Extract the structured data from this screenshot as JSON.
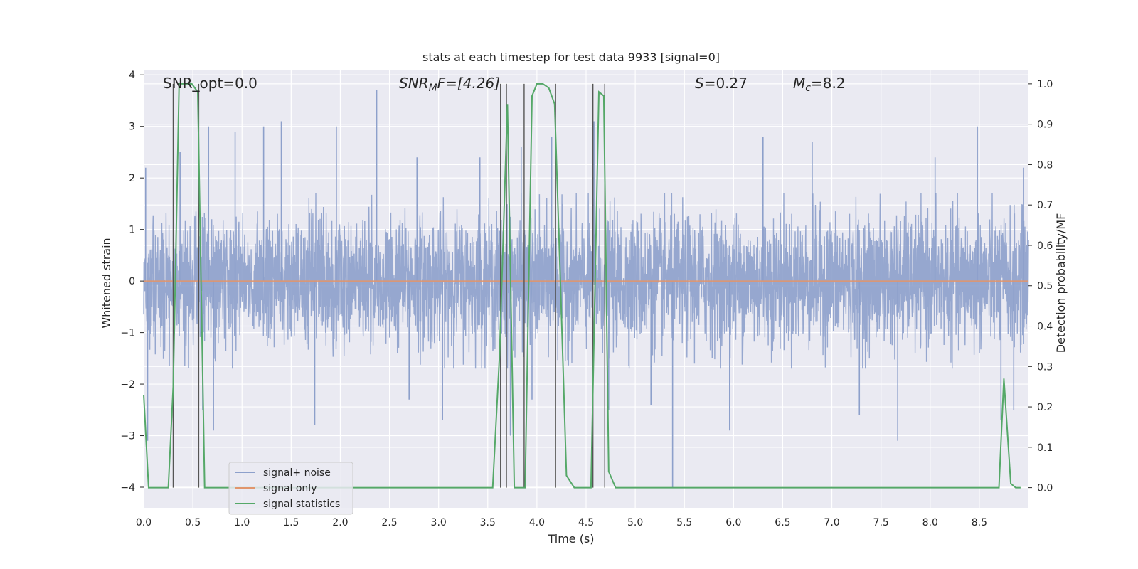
{
  "chart_data": {
    "type": "line",
    "title": "stats at each timestep for test data 9933 [signal=0]",
    "xlabel": "Time (s)",
    "ylabel": "Whitened strain",
    "y2label": "Detection probability/MF",
    "xlim": [
      0.0,
      9.0
    ],
    "ylim": [
      -4.4,
      4.1
    ],
    "y2lim": [
      -0.05,
      1.035
    ],
    "xticks": [
      "0.0",
      "0.5",
      "1.0",
      "1.5",
      "2.0",
      "2.5",
      "3.0",
      "3.5",
      "4.0",
      "4.5",
      "5.0",
      "5.5",
      "6.0",
      "6.5",
      "7.0",
      "7.5",
      "8.0",
      "8.5"
    ],
    "yticks": [
      "4",
      "3",
      "2",
      "1",
      "0",
      "−1",
      "−2",
      "−3",
      "−4"
    ],
    "y2ticks": [
      "1.0",
      "0.9",
      "0.8",
      "0.7",
      "0.6",
      "0.5",
      "0.4",
      "0.3",
      "0.2",
      "0.1",
      "0.0"
    ],
    "annotations": {
      "snr_opt": "SNR_opt=0.0",
      "snr_mf_sym": "SNR",
      "snr_mf_sub": "M",
      "snr_mf_rest": "F=[4.26]",
      "s_sym": "S",
      "s_rest": "=0.27",
      "mc_sym": "M",
      "mc_sub": "c",
      "mc_rest": "=8.2"
    },
    "legend": {
      "placement": "lower-left",
      "entries": [
        "signal+ noise",
        "signal only",
        "signal statistics"
      ]
    },
    "colors": {
      "noise": "#8da0cb",
      "signal": "#e1956c",
      "stat": "#55a868",
      "vline": "#555555",
      "bg": "#eaeaf2",
      "grid": "#ffffff"
    },
    "series": [
      {
        "name": "signal+ noise",
        "note_envelope": [
          -1.7,
          1.7
        ],
        "duration": 9.0,
        "spikes": [
          [
            0.02,
            2.2
          ],
          [
            0.04,
            -3.1
          ],
          [
            0.37,
            2.5
          ],
          [
            0.6,
            -2.5
          ],
          [
            0.66,
            3.0
          ],
          [
            0.71,
            -2.9
          ],
          [
            0.93,
            2.9
          ],
          [
            1.22,
            3.0
          ],
          [
            1.4,
            3.1
          ],
          [
            1.74,
            -2.8
          ],
          [
            1.96,
            3.0
          ],
          [
            2.37,
            3.7
          ],
          [
            2.7,
            -2.3
          ],
          [
            2.78,
            2.4
          ],
          [
            3.04,
            -2.7
          ],
          [
            3.42,
            2.4
          ],
          [
            3.63,
            -2.3
          ],
          [
            3.73,
            -3.0
          ],
          [
            3.84,
            2.6
          ],
          [
            3.95,
            -2.3
          ],
          [
            4.15,
            2.8
          ],
          [
            4.58,
            3.1
          ],
          [
            4.73,
            -2.5
          ],
          [
            5.16,
            -2.4
          ],
          [
            5.38,
            -4.0
          ],
          [
            5.96,
            -2.9
          ],
          [
            6.3,
            2.8
          ],
          [
            6.8,
            2.7
          ],
          [
            7.28,
            -2.6
          ],
          [
            7.67,
            -3.1
          ],
          [
            8.05,
            2.4
          ],
          [
            8.48,
            3.0
          ],
          [
            8.72,
            -2.7
          ],
          [
            8.85,
            -2.5
          ],
          [
            8.95,
            2.2
          ]
        ]
      },
      {
        "name": "signal only",
        "x": [
          0.0,
          9.0
        ],
        "y": [
          0.0,
          0.0
        ]
      },
      {
        "name": "signal statistics",
        "x": [
          0.0,
          0.05,
          0.1,
          0.25,
          0.3,
          0.36,
          0.49,
          0.55,
          0.62,
          0.7,
          3.55,
          3.62,
          3.7,
          3.77,
          3.83,
          3.88,
          3.95,
          4.0,
          4.06,
          4.12,
          4.18,
          4.24,
          4.3,
          4.38,
          4.45,
          4.55,
          4.63,
          4.68,
          4.73,
          4.8,
          5.0,
          8.7,
          8.75,
          8.82,
          8.87,
          8.92
        ],
        "y": [
          0.23,
          0.0,
          0.0,
          0.0,
          0.25,
          1.0,
          1.0,
          0.98,
          0.0,
          0.0,
          0.0,
          0.33,
          0.95,
          0.0,
          0.0,
          0.0,
          0.97,
          1.0,
          1.0,
          0.99,
          0.95,
          0.5,
          0.03,
          0.0,
          0.0,
          0.0,
          0.98,
          0.97,
          0.04,
          0.0,
          0.0,
          0.0,
          0.27,
          0.01,
          0.0,
          0.0
        ]
      }
    ],
    "vlines": [
      0.3,
      0.56,
      3.63,
      3.69,
      3.87,
      4.19,
      4.57,
      4.69
    ]
  }
}
